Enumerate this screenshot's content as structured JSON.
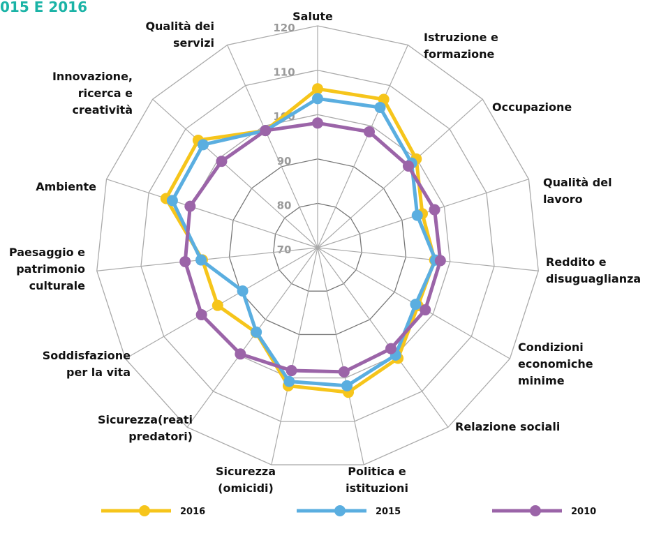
{
  "chart_data": {
    "type": "radar",
    "title": "015 E 2016",
    "categories": [
      "Salute",
      "Istruzione e\nformazione",
      "Occupazione",
      "Qualità del\nlavoro",
      "Reddito e\ndisuguaglianza",
      "Condizioni\neconomiche\nminime",
      "Relazione sociali",
      "Politica e\nistituzioni",
      "Sicurezza\n(omicidi)",
      "Sicurezza(reati\npredatori)",
      "Soddisfazione\nper la vita",
      "Paesaggio e\npatrimonio\nculturale",
      "Ambiente",
      "Innovazione,\nricerca e\ncreatività",
      "Qualità dei\nservizi"
    ],
    "ylim": [
      70,
      120
    ],
    "yticks": [
      70,
      80,
      90,
      100,
      110,
      120
    ],
    "series": [
      {
        "name": "2016",
        "color": "#f6c51b",
        "values": [
          105.8,
          106.6,
          99.9,
          94.8,
          96.5,
          96.1,
          100.8,
          103.3,
          101.8,
          93.6,
          96.0,
          96.1,
          105.9,
          106.2,
          98.9
        ]
      },
      {
        "name": "2015",
        "color": "#5aaee0",
        "values": [
          103.6,
          104.6,
          98.5,
          93.6,
          96.7,
          95.5,
          99.9,
          101.8,
          100.8,
          93.5,
          89.5,
          96.4,
          104.4,
          104.7,
          98.9
        ]
      },
      {
        "name": "2010",
        "color": "#9b64a8",
        "values": [
          98.1,
          98.6,
          97.5,
          97.7,
          97.8,
          98.0,
          98.1,
          98.6,
          98.3,
          99.6,
          100.2,
          100.0,
          100.2,
          99.1,
          98.9
        ]
      }
    ]
  }
}
